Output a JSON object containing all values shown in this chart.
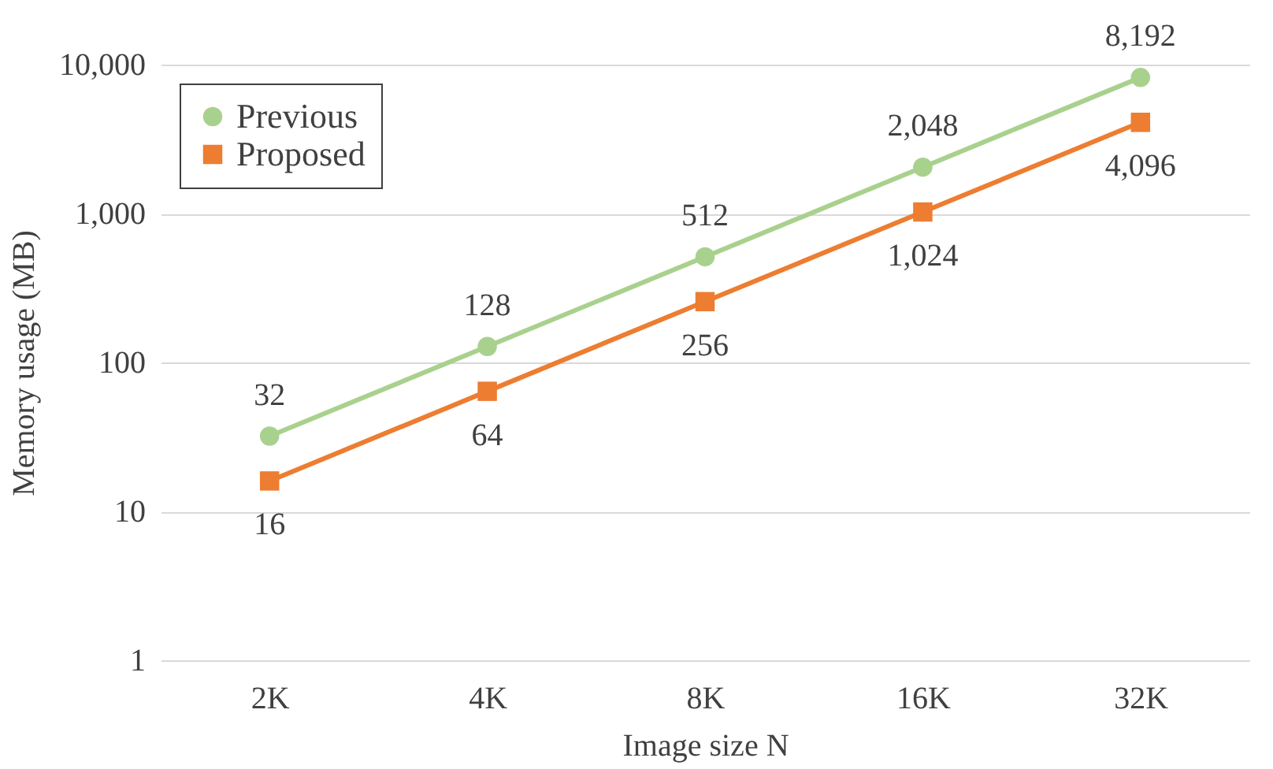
{
  "chart_data": {
    "type": "line",
    "xlabel": "Image size N",
    "ylabel": "Memory usage (MB)",
    "categories": [
      "2K",
      "4K",
      "8K",
      "16K",
      "32K"
    ],
    "series": [
      {
        "name": "Previous",
        "color": "#a9d18e",
        "marker": "circle",
        "values": [
          32,
          128,
          512,
          2048,
          8192
        ],
        "value_labels": [
          "32",
          "128",
          "512",
          "2,048",
          "8,192"
        ]
      },
      {
        "name": "Proposed",
        "color": "#ed7d31",
        "marker": "square",
        "values": [
          16,
          64,
          256,
          1024,
          4096
        ],
        "value_labels": [
          "16",
          "64",
          "256",
          "1,024",
          "4,096"
        ]
      }
    ],
    "log": true,
    "ylim": [
      1,
      10000
    ],
    "yticks": [
      1,
      10,
      100,
      {
        "value": 1000,
        "label": "1,000"
      },
      {
        "value": 10000,
        "label": "10,000"
      }
    ],
    "grid": "y",
    "legend": "top left",
    "line_style": "solid"
  }
}
